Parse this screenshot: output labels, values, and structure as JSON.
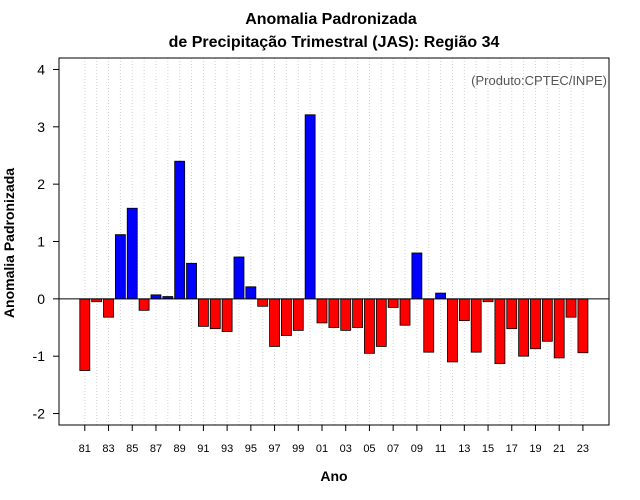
{
  "chart_data": {
    "type": "bar",
    "title": "Anomalia Padronizada",
    "subtitle": "de Precipitação Trimestral (JAS): Região 34",
    "xlabel": "Ano",
    "ylabel": "Anomalia Padronizada",
    "annotation": "(Produto:CPTEC/INPE)",
    "ylim": [
      -2.2,
      4.2
    ],
    "yticks": [
      -2,
      -1,
      0,
      1,
      2,
      3,
      4
    ],
    "grid": true,
    "positive_color": "#0000ff",
    "negative_color": "#ff0000",
    "categories": [
      "81",
      "82",
      "83",
      "84",
      "85",
      "86",
      "87",
      "88",
      "89",
      "90",
      "91",
      "92",
      "93",
      "94",
      "95",
      "96",
      "97",
      "98",
      "99",
      "00",
      "01",
      "02",
      "03",
      "04",
      "05",
      "06",
      "07",
      "08",
      "09",
      "10",
      "11",
      "12",
      "13",
      "14",
      "15",
      "16",
      "17",
      "18",
      "19",
      "20",
      "21",
      "22",
      "23"
    ],
    "tick_labels": [
      "81",
      "83",
      "85",
      "87",
      "89",
      "91",
      "93",
      "95",
      "97",
      "99",
      "01",
      "03",
      "05",
      "07",
      "09",
      "11",
      "13",
      "15",
      "17",
      "19",
      "21",
      "23"
    ],
    "values": [
      -1.25,
      -0.05,
      -0.32,
      1.12,
      1.58,
      -0.2,
      0.07,
      0.04,
      2.4,
      0.62,
      -0.48,
      -0.52,
      -0.57,
      0.73,
      0.21,
      -0.13,
      -0.83,
      -0.64,
      -0.55,
      3.21,
      -0.42,
      -0.5,
      -0.55,
      -0.5,
      -0.95,
      -0.83,
      -0.15,
      -0.46,
      0.8,
      -0.93,
      0.1,
      -1.1,
      -0.38,
      -0.93,
      -0.05,
      -1.13,
      -0.52,
      -1.0,
      -0.87,
      -0.74,
      -1.03,
      -0.32,
      -0.94
    ]
  }
}
